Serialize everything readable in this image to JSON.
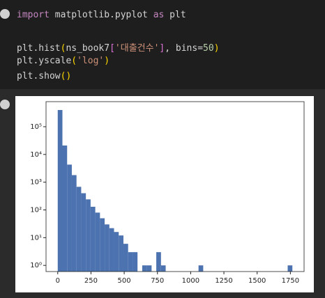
{
  "code": [
    [
      {
        "text": "import",
        "color": "#c586c0"
      },
      {
        "text": " matplotlib.pyplot ",
        "color": "#d4d4d4"
      },
      {
        "text": "as",
        "color": "#c586c0"
      },
      {
        "text": " plt",
        "color": "#d4d4d4"
      }
    ],
    [
      {
        "text": "plt.hist",
        "color": "#d4d4d4"
      },
      {
        "text": "(",
        "color": "#ffd700"
      },
      {
        "text": "ns_book7",
        "color": "#d4d4d4"
      },
      {
        "text": "[",
        "color": "#da70d6"
      },
      {
        "text": "'대출건수'",
        "color": "#ce9178"
      },
      {
        "text": "]",
        "color": "#da70d6"
      },
      {
        "text": ", bins=",
        "color": "#d4d4d4"
      },
      {
        "text": "50",
        "color": "#b5cea8"
      },
      {
        "text": ")",
        "color": "#ffd700"
      }
    ],
    [
      {
        "text": "plt.yscale",
        "color": "#d4d4d4"
      },
      {
        "text": "(",
        "color": "#ffd700"
      },
      {
        "text": "'log'",
        "color": "#ce9178"
      },
      {
        "text": ")",
        "color": "#ffd700"
      }
    ],
    [
      {
        "text": "plt.show",
        "color": "#d4d4d4"
      },
      {
        "text": "()",
        "color": "#ffd700"
      }
    ]
  ],
  "chart_data": {
    "type": "histogram",
    "color": "#4c72b0",
    "log_y": true,
    "bins": [
      0,
      35.3,
      70.6,
      105.9,
      141.2,
      176.5,
      211.8,
      247.1,
      282.4,
      317.7,
      353,
      388.3,
      423.6,
      458.9,
      494.2,
      529.5,
      564.8,
      600.1,
      635.4,
      670.7,
      706,
      741.3,
      776.6,
      811.9,
      847.2,
      882.5,
      917.8,
      953.1,
      988.4,
      1023.7,
      1059,
      1094.3,
      1129.6,
      1164.9,
      1200.2,
      1235.5,
      1270.8,
      1306.1,
      1341.4,
      1376.7,
      1412,
      1447.3,
      1482.6,
      1517.9,
      1553.2,
      1588.5,
      1623.8,
      1659.1,
      1694.4,
      1729.7,
      1765
    ],
    "counts": [
      400000,
      21000,
      4300,
      1800,
      680,
      400,
      240,
      130,
      80,
      50,
      30,
      22,
      16,
      12,
      6,
      3,
      3,
      0,
      1,
      1,
      0,
      3,
      1,
      0,
      0,
      0,
      0,
      0,
      0,
      0,
      1,
      0,
      0,
      0,
      0,
      0,
      0,
      0,
      0,
      0,
      0,
      0,
      0,
      0,
      0,
      0,
      0,
      0,
      0,
      1
    ],
    "xlim": [
      -88,
      1853
    ],
    "ylim": [
      0.6,
      800000
    ],
    "xticks": [
      0,
      250,
      500,
      750,
      1000,
      1250,
      1500,
      1750
    ],
    "yticks": [
      {
        "value": 1,
        "label": "10⁰"
      },
      {
        "value": 10,
        "label": "10¹"
      },
      {
        "value": 100,
        "label": "10²"
      },
      {
        "value": 1000,
        "label": "10³"
      },
      {
        "value": 10000,
        "label": "10⁴"
      },
      {
        "value": 100000,
        "label": "10⁵"
      }
    ]
  }
}
